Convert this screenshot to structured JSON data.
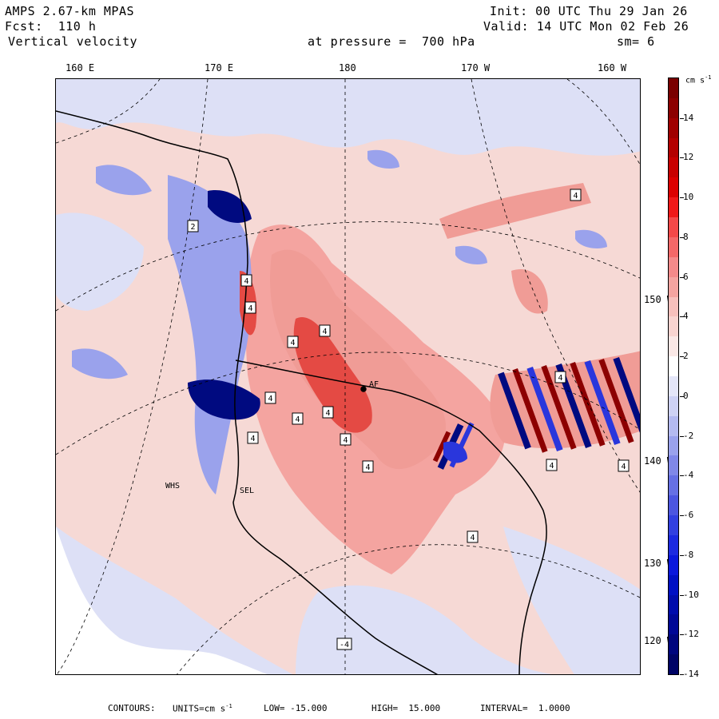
{
  "header": {
    "model": "AMPS 2.67-km MPAS",
    "forecast": "Fcst:  110 h",
    "field": "Vertical velocity",
    "init": "Init: 00 UTC Thu 29 Jan 26",
    "valid": "Valid: 14 UTC Mon 02 Feb 26",
    "pressure": "at pressure =  700 hPa",
    "smoothing": "sm= 6"
  },
  "longitude_labels": [
    "160 E",
    "170 E",
    "180",
    "170 W",
    "160 W"
  ],
  "latitude_labels": [
    "150 W",
    "140 W",
    "130 W",
    "120 W"
  ],
  "colorbar": {
    "units_label": "cm s",
    "units_exp": "-1",
    "tick_labels": [
      "14",
      "12",
      "10",
      "8",
      "6",
      "4",
      "2",
      "0",
      "-2",
      "-4",
      "-6",
      "-8",
      "-10",
      "-12",
      "-14"
    ],
    "colors_top_to_bottom": [
      "#7a0000",
      "#8c0000",
      "#a00000",
      "#b40000",
      "#c80000",
      "#dc0000",
      "#f01818",
      "#f44848",
      "#f46868",
      "#f48a8a",
      "#f4a4a0",
      "#f6c0bc",
      "#f8d4d0",
      "#fae8e6",
      "#ffffff",
      "#e4e6f8",
      "#ced2f4",
      "#b4baf0",
      "#9aa2ec",
      "#8088e8",
      "#6670e4",
      "#4c56e0",
      "#3240e0",
      "#1c2ae0",
      "#0a18dc",
      "#0010c4",
      "#000cac",
      "#000896",
      "#00067e",
      "#000466"
    ]
  },
  "map": {
    "station_labels": [
      "WHS",
      "SEL",
      "AF"
    ],
    "box_labels": [
      "4",
      "4",
      "4",
      "4",
      "4",
      "4",
      "4",
      "4",
      "4",
      "4",
      "4",
      "4",
      "4",
      "4",
      "-4",
      "2",
      "4"
    ],
    "colors": {
      "land_line": "#000000",
      "graticule": "#000000",
      "pos_light": "#f6d2ce",
      "pos_mid": "#f09c96",
      "pos_strong": "#e44a44",
      "neg_light": "#dde0f6",
      "neg_mid": "#9aa2ec",
      "neg_strong": "#2a36dc",
      "neg_dark": "#000a80",
      "pos_dark": "#8c0000"
    }
  },
  "footer": {
    "contours": "CONTOURS:",
    "units": "UNITS=cm s",
    "units_exp": "-1",
    "low": "LOW= -15.000",
    "high": "HIGH=  15.000",
    "interval": "INTERVAL=  1.0000"
  }
}
